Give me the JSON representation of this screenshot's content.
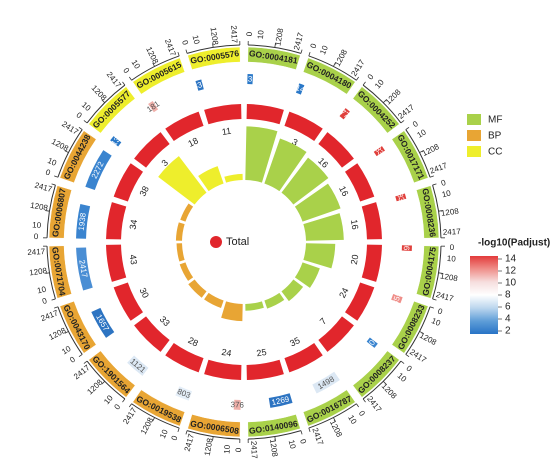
{
  "chart_data": {
    "type": "circos",
    "center_label": "Total",
    "scale_max": 2417,
    "scale_ticks": [
      0,
      10,
      1208,
      2417
    ],
    "legend_categories": [
      {
        "name": "MF",
        "color": "#a9d14a"
      },
      {
        "name": "BP",
        "color": "#e8a534"
      },
      {
        "name": "CC",
        "color": "#eeee2c"
      }
    ],
    "colorbar": {
      "title": "-log10(Padjust)",
      "ticks": [
        "14",
        "12",
        "10",
        "8",
        "6",
        "4",
        "2"
      ],
      "colors": [
        "#e23b3b",
        "#ef8f8a",
        "#f6dede",
        "#ffffff",
        "#bcd6ee",
        "#5f9ed8",
        "#2873c6"
      ]
    },
    "terms": [
      {
        "id": "GO:0004181",
        "category": "MF",
        "background": 131,
        "bg_color": "#2a78c8",
        "count": 3,
        "rich": 0.88
      },
      {
        "id": "GO:0004180",
        "category": "MF",
        "background": 14,
        "bg_color": "#2a78c8",
        "count": 3,
        "rich": 0.78
      },
      {
        "id": "GO:0004252",
        "category": "MF",
        "background": 77,
        "bg_color": "#e0403c",
        "count": 16,
        "rich": 0.72
      },
      {
        "id": "GO:0017171",
        "category": "MF",
        "background": 83,
        "bg_color": "#e0403c",
        "count": 16,
        "rich": 0.66
      },
      {
        "id": "GO:0008236",
        "category": "MF",
        "background": 83,
        "bg_color": "#e0403c",
        "count": 16,
        "rich": 0.62
      },
      {
        "id": "GO:0004175",
        "category": "MF",
        "background": 195,
        "bg_color": "#e0403c",
        "count": 20,
        "rich": 0.48
      },
      {
        "id": "GO:0008233",
        "category": "MF",
        "background": 355,
        "bg_color": "#ef8f8a",
        "count": 24,
        "rich": 0.3
      },
      {
        "id": "GO:0008237",
        "category": "MF",
        "background": 109,
        "bg_color": "#3a84cf",
        "count": 7,
        "rich": 0.2
      },
      {
        "id": "GO:0016787",
        "category": "MF",
        "background": 1498,
        "bg_color": "#dce8f4",
        "count": 35,
        "rich": 0.14
      },
      {
        "id": "GO:0140096",
        "category": "MF",
        "background": 1269,
        "bg_color": "#2d74c2",
        "count": 25,
        "rich": 0.11
      },
      {
        "id": "GO:0006508",
        "category": "BP",
        "background": 376,
        "bg_color": "#f0b0aa",
        "count": 24,
        "rich": 0.28
      },
      {
        "id": "GO:0019538",
        "category": "BP",
        "background": 803,
        "bg_color": "#e4eef8",
        "count": 28,
        "rich": 0.13
      },
      {
        "id": "GO:1901564",
        "category": "BP",
        "background": 1121,
        "bg_color": "#dce8f4",
        "count": 33,
        "rich": 0.13
      },
      {
        "id": "GO:0043170",
        "category": "BP",
        "background": 1657,
        "bg_color": "#2d74c2",
        "count": 30,
        "rich": 0.1
      },
      {
        "id": "GO:0071704",
        "category": "BP",
        "background": 2417,
        "bg_color": "#4a8ed4",
        "count": 43,
        "rich": 0.09
      },
      {
        "id": "GO:0006807",
        "category": "BP",
        "background": 1938,
        "bg_color": "#3a84cf",
        "count": 34,
        "rich": 0.1
      },
      {
        "id": "GO:0044238",
        "category": "BP",
        "background": 2272,
        "bg_color": "#3a84cf",
        "count": 38,
        "rich": 0.09
      },
      {
        "id": "GO:0005577",
        "category": "CC",
        "background": 13,
        "bg_color": "#2a78c8",
        "count": 3,
        "rich": 0.75
      },
      {
        "id": "GO:0005615",
        "category": "CC",
        "background": 181,
        "bg_color": "#f0b0aa",
        "count": 18,
        "rich": 0.3
      },
      {
        "id": "GO:0005576",
        "category": "CC",
        "background": 337,
        "bg_color": "#2d74c2",
        "count": 11,
        "rich": 0.1
      }
    ]
  }
}
